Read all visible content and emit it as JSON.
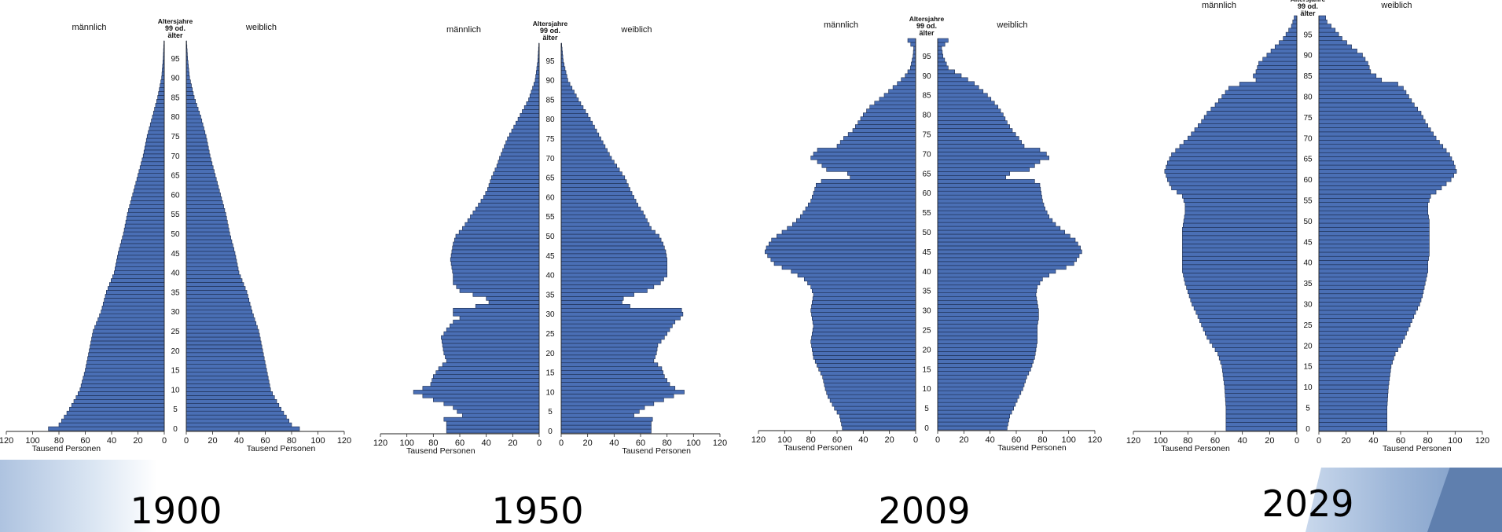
{
  "chart_data": [
    {
      "type": "bar",
      "year": "1900",
      "left_label": "männlich",
      "right_label": "weiblich",
      "center_label_lines": [
        "Altersjahre",
        "99 od.",
        "älter"
      ],
      "x_axis_label": "Tausend Personen",
      "xlim": [
        0,
        120
      ],
      "ticks": [
        0,
        20,
        40,
        60,
        80,
        100,
        120
      ],
      "age_ticks": [
        0,
        5,
        10,
        15,
        20,
        25,
        30,
        35,
        40,
        45,
        50,
        55,
        60,
        65,
        70,
        75,
        80,
        85,
        90,
        95
      ],
      "age_max": 99,
      "male_anchors": [
        [
          0,
          88
        ],
        [
          1,
          80
        ],
        [
          3,
          76
        ],
        [
          5,
          72
        ],
        [
          8,
          67
        ],
        [
          10,
          64
        ],
        [
          15,
          60
        ],
        [
          20,
          57
        ],
        [
          25,
          54
        ],
        [
          30,
          48
        ],
        [
          35,
          44
        ],
        [
          40,
          38
        ],
        [
          45,
          35
        ],
        [
          50,
          31
        ],
        [
          55,
          28
        ],
        [
          60,
          24
        ],
        [
          65,
          20
        ],
        [
          70,
          16
        ],
        [
          75,
          13
        ],
        [
          80,
          9
        ],
        [
          85,
          5
        ],
        [
          90,
          2
        ],
        [
          95,
          0.8
        ],
        [
          99,
          0.3
        ]
      ],
      "female_anchors": [
        [
          0,
          86
        ],
        [
          1,
          80
        ],
        [
          3,
          76
        ],
        [
          5,
          72
        ],
        [
          8,
          67
        ],
        [
          10,
          64
        ],
        [
          15,
          61
        ],
        [
          20,
          58
        ],
        [
          25,
          55
        ],
        [
          30,
          50
        ],
        [
          35,
          46
        ],
        [
          40,
          40
        ],
        [
          45,
          37
        ],
        [
          50,
          33
        ],
        [
          55,
          30
        ],
        [
          60,
          26
        ],
        [
          65,
          22
        ],
        [
          70,
          18
        ],
        [
          75,
          15
        ],
        [
          80,
          11
        ],
        [
          85,
          6
        ],
        [
          90,
          2.5
        ],
        [
          95,
          1
        ],
        [
          99,
          0.3
        ]
      ]
    },
    {
      "type": "bar",
      "year": "1950",
      "left_label": "männlich",
      "right_label": "weiblich",
      "center_label_lines": [
        "Altersjahre",
        "99 od.",
        "älter"
      ],
      "x_axis_label": "Tausend Personen",
      "xlim": [
        0,
        120
      ],
      "ticks": [
        0,
        20,
        40,
        60,
        80,
        100,
        120
      ],
      "age_ticks": [
        0,
        5,
        10,
        15,
        20,
        25,
        30,
        35,
        40,
        45,
        50,
        55,
        60,
        65,
        70,
        75,
        80,
        85,
        90,
        95
      ],
      "age_max": 99,
      "male_anchors": [
        [
          0,
          70
        ],
        [
          2,
          70
        ],
        [
          3,
          72
        ],
        [
          4,
          58
        ],
        [
          5,
          62
        ],
        [
          6,
          65
        ],
        [
          7,
          72
        ],
        [
          9,
          88
        ],
        [
          10,
          95
        ],
        [
          11,
          88
        ],
        [
          12,
          82
        ],
        [
          14,
          80
        ],
        [
          16,
          76
        ],
        [
          18,
          70
        ],
        [
          20,
          72
        ],
        [
          22,
          73
        ],
        [
          24,
          74
        ],
        [
          26,
          70
        ],
        [
          28,
          65
        ],
        [
          29,
          60
        ],
        [
          30,
          65
        ],
        [
          31,
          65
        ],
        [
          32,
          48
        ],
        [
          33,
          38
        ],
        [
          34,
          40
        ],
        [
          35,
          50
        ],
        [
          36,
          60
        ],
        [
          38,
          65
        ],
        [
          40,
          65
        ],
        [
          42,
          66
        ],
        [
          44,
          67
        ],
        [
          46,
          66
        ],
        [
          48,
          65
        ],
        [
          50,
          63
        ],
        [
          52,
          58
        ],
        [
          54,
          54
        ],
        [
          56,
          50
        ],
        [
          58,
          46
        ],
        [
          60,
          42
        ],
        [
          62,
          39
        ],
        [
          65,
          36
        ],
        [
          68,
          32
        ],
        [
          70,
          30
        ],
        [
          75,
          24
        ],
        [
          80,
          16
        ],
        [
          85,
          8
        ],
        [
          90,
          3
        ],
        [
          95,
          1
        ],
        [
          99,
          0.3
        ]
      ],
      "female_anchors": [
        [
          0,
          68
        ],
        [
          2,
          68
        ],
        [
          3,
          69
        ],
        [
          4,
          55
        ],
        [
          5,
          59
        ],
        [
          6,
          63
        ],
        [
          7,
          70
        ],
        [
          9,
          85
        ],
        [
          10,
          93
        ],
        [
          11,
          86
        ],
        [
          12,
          82
        ],
        [
          14,
          78
        ],
        [
          16,
          76
        ],
        [
          18,
          70
        ],
        [
          20,
          72
        ],
        [
          22,
          73
        ],
        [
          24,
          78
        ],
        [
          26,
          82
        ],
        [
          28,
          86
        ],
        [
          29,
          90
        ],
        [
          30,
          92
        ],
        [
          31,
          91
        ],
        [
          32,
          52
        ],
        [
          33,
          46
        ],
        [
          34,
          47
        ],
        [
          35,
          55
        ],
        [
          36,
          65
        ],
        [
          38,
          75
        ],
        [
          40,
          80
        ],
        [
          42,
          80
        ],
        [
          44,
          80
        ],
        [
          46,
          79
        ],
        [
          48,
          77
        ],
        [
          50,
          74
        ],
        [
          52,
          68
        ],
        [
          54,
          65
        ],
        [
          56,
          62
        ],
        [
          58,
          58
        ],
        [
          60,
          55
        ],
        [
          62,
          52
        ],
        [
          65,
          48
        ],
        [
          68,
          42
        ],
        [
          70,
          38
        ],
        [
          75,
          30
        ],
        [
          80,
          22
        ],
        [
          85,
          13
        ],
        [
          90,
          5
        ],
        [
          95,
          1.5
        ],
        [
          99,
          0.4
        ]
      ]
    },
    {
      "type": "bar",
      "year": "2009",
      "left_label": "männlich",
      "right_label": "weiblich",
      "center_label_lines": [
        "Altersjahre",
        "99 od.",
        "älter"
      ],
      "x_axis_label": "Tausend Personen",
      "xlim": [
        0,
        120
      ],
      "ticks": [
        0,
        20,
        40,
        60,
        80,
        100,
        120
      ],
      "age_ticks": [
        0,
        5,
        10,
        15,
        20,
        25,
        30,
        35,
        40,
        45,
        50,
        55,
        60,
        65,
        70,
        75,
        80,
        85,
        90,
        95
      ],
      "age_max": 99,
      "male_anchors": [
        [
          0,
          56
        ],
        [
          3,
          58
        ],
        [
          5,
          62
        ],
        [
          8,
          67
        ],
        [
          10,
          69
        ],
        [
          13,
          71
        ],
        [
          15,
          74
        ],
        [
          18,
          78
        ],
        [
          20,
          79
        ],
        [
          22,
          80
        ],
        [
          24,
          79
        ],
        [
          26,
          78
        ],
        [
          28,
          79
        ],
        [
          30,
          80
        ],
        [
          32,
          79
        ],
        [
          34,
          78
        ],
        [
          36,
          80
        ],
        [
          38,
          85
        ],
        [
          40,
          95
        ],
        [
          41,
          102
        ],
        [
          42,
          108
        ],
        [
          44,
          113
        ],
        [
          45,
          115
        ],
        [
          46,
          114
        ],
        [
          48,
          110
        ],
        [
          50,
          102
        ],
        [
          52,
          94
        ],
        [
          54,
          88
        ],
        [
          56,
          84
        ],
        [
          58,
          80
        ],
        [
          60,
          78
        ],
        [
          62,
          76
        ],
        [
          63,
          72
        ],
        [
          64,
          50
        ],
        [
          65,
          52
        ],
        [
          66,
          68
        ],
        [
          68,
          75
        ],
        [
          69,
          80
        ],
        [
          70,
          78
        ],
        [
          71,
          75
        ],
        [
          72,
          60
        ],
        [
          74,
          55
        ],
        [
          76,
          48
        ],
        [
          78,
          44
        ],
        [
          80,
          40
        ],
        [
          82,
          35
        ],
        [
          85,
          24
        ],
        [
          88,
          14
        ],
        [
          90,
          8
        ],
        [
          92,
          4
        ],
        [
          95,
          2
        ],
        [
          97,
          1.5
        ],
        [
          99,
          6
        ]
      ],
      "female_anchors": [
        [
          0,
          53
        ],
        [
          3,
          55
        ],
        [
          5,
          58
        ],
        [
          8,
          62
        ],
        [
          10,
          65
        ],
        [
          13,
          68
        ],
        [
          15,
          71
        ],
        [
          18,
          74
        ],
        [
          20,
          75
        ],
        [
          22,
          76
        ],
        [
          24,
          76
        ],
        [
          26,
          76
        ],
        [
          28,
          77
        ],
        [
          30,
          77
        ],
        [
          32,
          76
        ],
        [
          34,
          75
        ],
        [
          36,
          76
        ],
        [
          38,
          80
        ],
        [
          40,
          90
        ],
        [
          41,
          98
        ],
        [
          42,
          104
        ],
        [
          44,
          108
        ],
        [
          45,
          110
        ],
        [
          46,
          109
        ],
        [
          48,
          105
        ],
        [
          50,
          97
        ],
        [
          52,
          90
        ],
        [
          54,
          85
        ],
        [
          56,
          82
        ],
        [
          58,
          80
        ],
        [
          60,
          79
        ],
        [
          62,
          78
        ],
        [
          63,
          74
        ],
        [
          64,
          52
        ],
        [
          65,
          55
        ],
        [
          66,
          70
        ],
        [
          68,
          78
        ],
        [
          69,
          85
        ],
        [
          70,
          83
        ],
        [
          71,
          78
        ],
        [
          72,
          66
        ],
        [
          74,
          62
        ],
        [
          76,
          57
        ],
        [
          78,
          53
        ],
        [
          80,
          50
        ],
        [
          82,
          46
        ],
        [
          85,
          38
        ],
        [
          88,
          28
        ],
        [
          90,
          18
        ],
        [
          92,
          8
        ],
        [
          95,
          4
        ],
        [
          97,
          3
        ],
        [
          99,
          8
        ]
      ]
    },
    {
      "type": "bar",
      "year": "2029",
      "left_label": "männlich",
      "right_label": "weiblich",
      "center_label_lines": [
        "Altersjahre",
        "99 od.",
        "älter"
      ],
      "x_axis_label": "Tausend Personen",
      "xlim": [
        0,
        120
      ],
      "ticks": [
        0,
        20,
        40,
        60,
        80,
        100,
        120
      ],
      "age_ticks": [
        0,
        5,
        10,
        15,
        20,
        25,
        30,
        35,
        40,
        45,
        50,
        55,
        60,
        65,
        70,
        75,
        80,
        85,
        90,
        95
      ],
      "age_max": 99,
      "male_anchors": [
        [
          0,
          52
        ],
        [
          5,
          52
        ],
        [
          10,
          53
        ],
        [
          15,
          55
        ],
        [
          18,
          58
        ],
        [
          20,
          62
        ],
        [
          22,
          66
        ],
        [
          25,
          70
        ],
        [
          28,
          74
        ],
        [
          30,
          77
        ],
        [
          32,
          79
        ],
        [
          35,
          82
        ],
        [
          38,
          84
        ],
        [
          40,
          84
        ],
        [
          42,
          84
        ],
        [
          45,
          84
        ],
        [
          48,
          84
        ],
        [
          50,
          83
        ],
        [
          52,
          82
        ],
        [
          54,
          82
        ],
        [
          56,
          84
        ],
        [
          57,
          88
        ],
        [
          58,
          92
        ],
        [
          60,
          95
        ],
        [
          62,
          97
        ],
        [
          64,
          95
        ],
        [
          66,
          92
        ],
        [
          68,
          86
        ],
        [
          70,
          80
        ],
        [
          72,
          75
        ],
        [
          74,
          70
        ],
        [
          76,
          66
        ],
        [
          78,
          60
        ],
        [
          80,
          55
        ],
        [
          82,
          50
        ],
        [
          83,
          42
        ],
        [
          84,
          30
        ],
        [
          85,
          32
        ],
        [
          86,
          30
        ],
        [
          88,
          28
        ],
        [
          90,
          22
        ],
        [
          92,
          16
        ],
        [
          94,
          10
        ],
        [
          96,
          6
        ],
        [
          97,
          4
        ],
        [
          98,
          3
        ],
        [
          99,
          2
        ]
      ],
      "female_anchors": [
        [
          0,
          50
        ],
        [
          5,
          50
        ],
        [
          10,
          51
        ],
        [
          15,
          53
        ],
        [
          18,
          56
        ],
        [
          20,
          60
        ],
        [
          22,
          63
        ],
        [
          25,
          67
        ],
        [
          28,
          71
        ],
        [
          30,
          74
        ],
        [
          32,
          76
        ],
        [
          35,
          78
        ],
        [
          38,
          80
        ],
        [
          40,
          80
        ],
        [
          42,
          81
        ],
        [
          45,
          81
        ],
        [
          48,
          81
        ],
        [
          50,
          81
        ],
        [
          52,
          80
        ],
        [
          54,
          80
        ],
        [
          56,
          82
        ],
        [
          57,
          86
        ],
        [
          58,
          90
        ],
        [
          60,
          97
        ],
        [
          62,
          101
        ],
        [
          64,
          99
        ],
        [
          66,
          96
        ],
        [
          68,
          91
        ],
        [
          70,
          86
        ],
        [
          72,
          82
        ],
        [
          74,
          78
        ],
        [
          76,
          75
        ],
        [
          78,
          70
        ],
        [
          80,
          66
        ],
        [
          82,
          62
        ],
        [
          83,
          58
        ],
        [
          84,
          46
        ],
        [
          85,
          42
        ],
        [
          86,
          38
        ],
        [
          88,
          36
        ],
        [
          90,
          32
        ],
        [
          92,
          24
        ],
        [
          94,
          17
        ],
        [
          96,
          12
        ],
        [
          97,
          9
        ],
        [
          98,
          6
        ],
        [
          99,
          5
        ]
      ]
    }
  ]
}
